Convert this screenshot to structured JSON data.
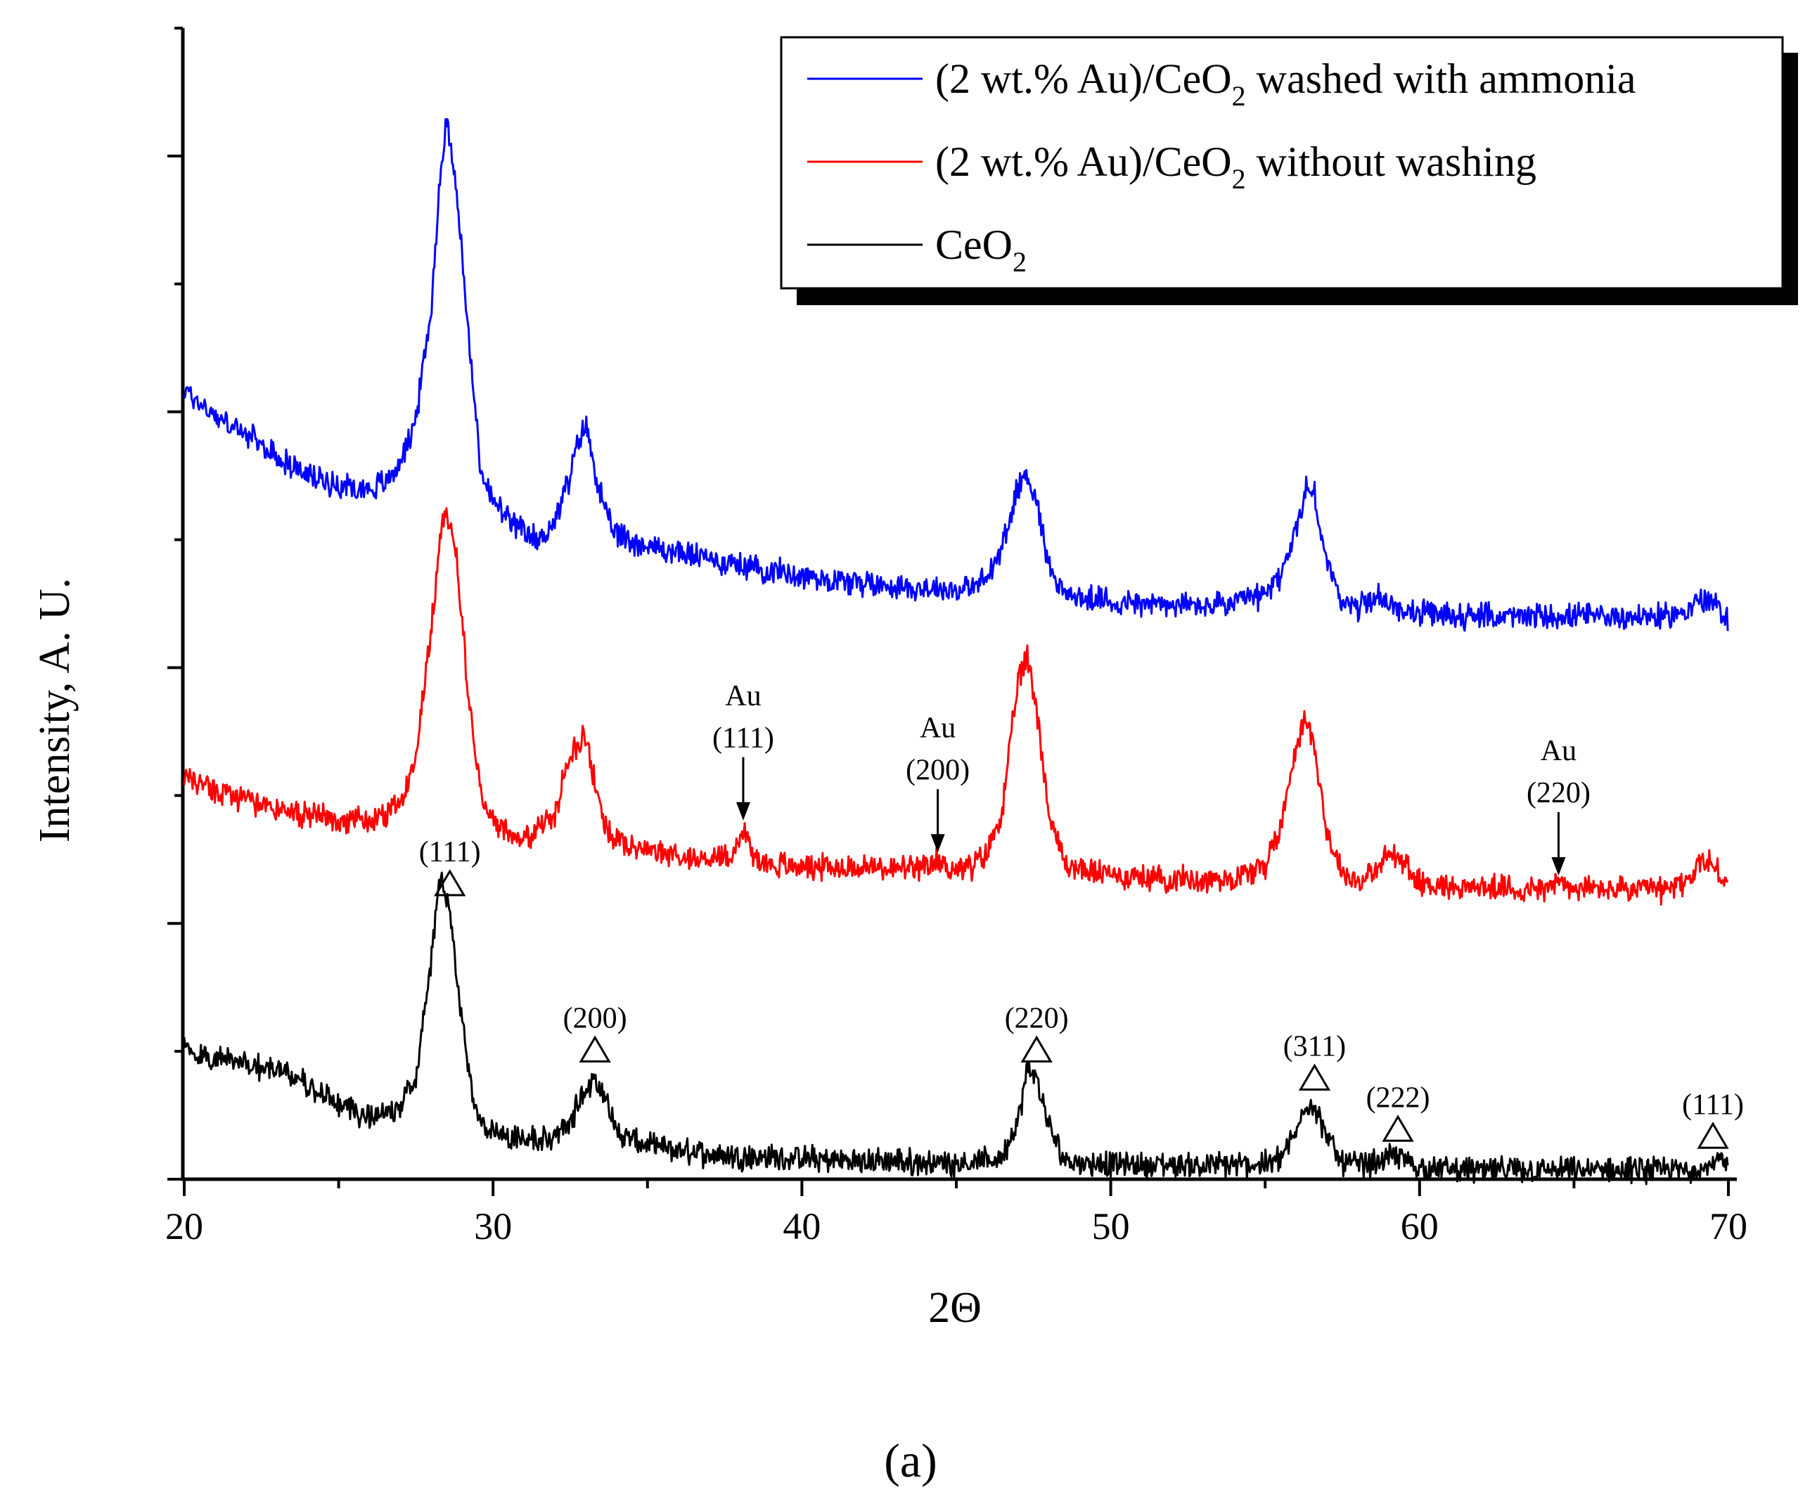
{
  "chart_data": {
    "type": "line",
    "title": "",
    "panel_label": "(a)",
    "xlabel": "2Θ",
    "ylabel": "Intensity, A. U.",
    "xlim": [
      20,
      70
    ],
    "ylim": [
      0,
      9
    ],
    "x_ticks": [
      20,
      30,
      40,
      50,
      60,
      70
    ],
    "y_ticks_labeled": false,
    "grid": false,
    "legend_position": "top-right",
    "legend": [
      {
        "name": "(2 wt.% Au)/CeO2 washed with ammonia",
        "text_main": "(2 wt.% Au)/CeO",
        "sub": "2",
        "text_rest": " washed with ammonia",
        "color": "#0000ff"
      },
      {
        "name": "(2 wt.% Au)/CeO2 without washing",
        "text_main": "(2 wt.% Au)/CeO",
        "sub": "2",
        "text_rest": " without washing",
        "color": "#ff0000"
      },
      {
        "name": "CeO2",
        "text_main": "CeO",
        "sub": "2",
        "text_rest": "",
        "color": "#000000"
      }
    ],
    "series": [
      {
        "name": "(2 wt.% Au)/CeO2 washed with ammonia",
        "color": "#0000ff",
        "x": [
          20,
          21,
          22,
          23,
          24,
          25,
          26,
          26.5,
          27,
          27.5,
          28,
          28.3,
          28.5,
          28.8,
          29.2,
          29.6,
          30,
          30.5,
          31,
          31.5,
          32,
          32.5,
          32.8,
          33,
          33.3,
          33.7,
          34,
          35,
          36,
          37,
          38,
          39,
          40,
          41,
          42,
          43,
          44,
          45,
          45.5,
          46,
          46.5,
          47,
          47.3,
          47.6,
          48,
          48.5,
          49,
          50,
          51,
          52,
          53,
          54,
          55,
          55.5,
          56,
          56.3,
          56.6,
          57,
          57.5,
          58,
          58.6,
          59,
          60,
          61,
          62,
          63,
          64,
          65,
          66,
          67,
          68,
          68.5,
          69,
          69.3,
          69.6,
          70
        ],
        "values": [
          6.17,
          5.97,
          5.82,
          5.65,
          5.5,
          5.43,
          5.4,
          5.45,
          5.6,
          5.95,
          6.8,
          7.9,
          8.28,
          7.8,
          6.6,
          5.55,
          5.3,
          5.15,
          5.05,
          5.0,
          5.15,
          5.5,
          5.8,
          5.9,
          5.55,
          5.15,
          5.04,
          4.95,
          4.9,
          4.85,
          4.8,
          4.76,
          4.72,
          4.69,
          4.66,
          4.64,
          4.62,
          4.61,
          4.62,
          4.7,
          4.95,
          5.42,
          5.52,
          5.3,
          4.8,
          4.58,
          4.54,
          4.52,
          4.5,
          4.49,
          4.48,
          4.5,
          4.57,
          4.72,
          5.06,
          5.4,
          5.35,
          4.8,
          4.52,
          4.47,
          4.56,
          4.49,
          4.42,
          4.41,
          4.4,
          4.4,
          4.4,
          4.4,
          4.4,
          4.4,
          4.4,
          4.43,
          4.52,
          4.53,
          4.48,
          4.38
        ]
      },
      {
        "name": "(2 wt.% Au)/CeO2 without washing",
        "color": "#ff0000",
        "x": [
          20,
          21,
          22,
          23,
          24,
          25,
          26,
          26.5,
          27,
          27.5,
          28,
          28.3,
          28.5,
          28.8,
          29.2,
          29.6,
          30,
          31,
          32,
          32.5,
          33,
          33.3,
          33.7,
          34,
          35,
          36,
          37,
          37.8,
          38.1,
          38.4,
          39,
          40,
          41,
          42,
          43,
          44,
          44.4,
          44.8,
          45.5,
          46,
          46.5,
          47,
          47.3,
          47.6,
          48,
          48.5,
          49,
          50,
          51,
          52,
          53,
          54,
          55,
          55.5,
          56,
          56.3,
          56.6,
          57,
          57.5,
          58,
          58.6,
          59,
          59.4,
          60,
          61,
          62,
          63,
          64,
          64.5,
          65,
          66,
          67,
          68,
          68.8,
          69.2,
          69.6,
          70
        ],
        "values": [
          3.15,
          3.05,
          2.95,
          2.9,
          2.85,
          2.82,
          2.8,
          2.82,
          2.95,
          3.35,
          4.3,
          5.05,
          5.25,
          4.9,
          3.8,
          3.0,
          2.8,
          2.65,
          2.85,
          3.35,
          3.45,
          3.1,
          2.72,
          2.64,
          2.58,
          2.52,
          2.5,
          2.55,
          2.75,
          2.53,
          2.46,
          2.45,
          2.44,
          2.44,
          2.43,
          2.42,
          2.5,
          2.43,
          2.44,
          2.55,
          2.9,
          3.9,
          4.08,
          3.7,
          2.85,
          2.48,
          2.42,
          2.38,
          2.36,
          2.35,
          2.34,
          2.36,
          2.45,
          2.75,
          3.4,
          3.6,
          3.4,
          2.7,
          2.4,
          2.33,
          2.4,
          2.55,
          2.5,
          2.32,
          2.29,
          2.28,
          2.27,
          2.27,
          2.32,
          2.27,
          2.27,
          2.26,
          2.26,
          2.35,
          2.52,
          2.42,
          2.32
        ]
      },
      {
        "name": "CeO2",
        "color": "#000000",
        "x": [
          20,
          21,
          22,
          23,
          24,
          25,
          25.5,
          26,
          26.5,
          27,
          27.5,
          28,
          28.3,
          28.6,
          29,
          29.4,
          29.8,
          30.3,
          31,
          32,
          32.5,
          33,
          33.3,
          33.7,
          34,
          35,
          36,
          37,
          38,
          39,
          40,
          41,
          42,
          43,
          44,
          45,
          46,
          46.5,
          47,
          47.3,
          47.6,
          48,
          48.5,
          49,
          50,
          51,
          52,
          53,
          54,
          55,
          55.5,
          56,
          56.3,
          56.6,
          57,
          57.5,
          58,
          58.5,
          59,
          59.3,
          59.7,
          60,
          61,
          62,
          63,
          64,
          65,
          66,
          67,
          68,
          69,
          69.4,
          69.8,
          70
        ],
        "values": [
          1.02,
          0.95,
          0.9,
          0.85,
          0.75,
          0.58,
          0.52,
          0.5,
          0.5,
          0.55,
          0.8,
          1.7,
          2.4,
          2.1,
          1.2,
          0.55,
          0.4,
          0.35,
          0.32,
          0.32,
          0.45,
          0.7,
          0.8,
          0.6,
          0.36,
          0.26,
          0.22,
          0.2,
          0.18,
          0.17,
          0.16,
          0.15,
          0.14,
          0.14,
          0.13,
          0.13,
          0.14,
          0.18,
          0.45,
          0.85,
          0.8,
          0.4,
          0.16,
          0.13,
          0.12,
          0.11,
          0.11,
          0.11,
          0.11,
          0.12,
          0.17,
          0.35,
          0.6,
          0.58,
          0.32,
          0.14,
          0.11,
          0.13,
          0.17,
          0.18,
          0.13,
          0.09,
          0.08,
          0.07,
          0.07,
          0.07,
          0.07,
          0.07,
          0.07,
          0.07,
          0.08,
          0.12,
          0.14,
          0.07
        ]
      }
    ],
    "annotations": [
      {
        "text": "(111)",
        "x": 28.6,
        "series": "CeO2",
        "marker": "triangle"
      },
      {
        "text": "(200)",
        "x": 33.3,
        "series": "CeO2",
        "marker": "triangle"
      },
      {
        "text": "(220)",
        "x": 47.6,
        "series": "CeO2",
        "marker": "triangle"
      },
      {
        "text": "(311)",
        "x": 56.6,
        "series": "CeO2",
        "marker": "triangle"
      },
      {
        "text": "(222)",
        "x": 59.3,
        "series": "CeO2",
        "marker": "triangle"
      },
      {
        "text": "(111)",
        "x": 69.5,
        "series": "CeO2",
        "marker": "triangle"
      }
    ],
    "au_annotations": [
      {
        "element": "Au",
        "hkl": "(111)",
        "x": 38.1
      },
      {
        "element": "Au",
        "hkl": "(200)",
        "x": 44.4
      },
      {
        "element": "Au",
        "hkl": "(220)",
        "x": 64.5
      }
    ]
  }
}
